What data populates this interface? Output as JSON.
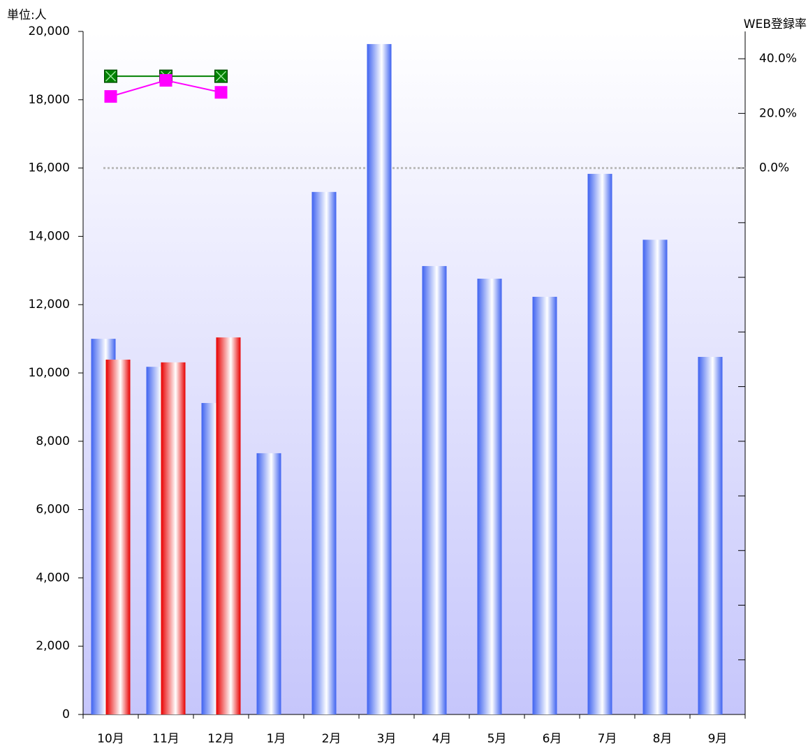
{
  "chart_data": {
    "type": "bar",
    "y_axis_label": "単位:人",
    "y2_axis_label": "WEB登録率",
    "categories": [
      "10月",
      "11月",
      "12月",
      "1月",
      "2月",
      "3月",
      "4月",
      "5月",
      "6月",
      "7月",
      "8月",
      "9月"
    ],
    "series": [
      {
        "color": "#3f63f0",
        "values": [
          11000,
          10180,
          9120,
          7650,
          15300,
          19630,
          13130,
          12760,
          12230,
          15830,
          13900,
          10470
        ]
      },
      {
        "color": "#e80000",
        "values": [
          10390,
          10310,
          11040,
          null,
          null,
          null,
          null,
          null,
          null,
          null,
          null,
          null
        ]
      },
      {
        "type": "line",
        "axis": "y2",
        "color": "#008000",
        "marker": "cross-square",
        "values": [
          33.6,
          33.6,
          33.6,
          null,
          null,
          null,
          null,
          null,
          null,
          null,
          null,
          null
        ]
      },
      {
        "type": "line",
        "axis": "y2",
        "color": "#ff00ff",
        "marker": "square",
        "values": [
          26.2,
          32.1,
          27.7,
          null,
          null,
          null,
          null,
          null,
          null,
          null,
          null,
          null
        ]
      }
    ],
    "ylim": [
      0,
      20000
    ],
    "yticks": [
      0,
      {
        "value": 2000,
        "label": "2,000"
      },
      {
        "value": 4000,
        "label": "4,000"
      },
      {
        "value": 6000,
        "label": "6,000"
      },
      {
        "value": 8000,
        "label": "8,000"
      },
      {
        "value": 10000,
        "label": "10,000"
      },
      {
        "value": 12000,
        "label": "12,000"
      },
      {
        "value": 14000,
        "label": "14,000"
      },
      {
        "value": 16000,
        "label": "16,000"
      },
      {
        "value": 18000,
        "label": "18,000"
      },
      {
        "value": 20000,
        "label": "20,000"
      }
    ],
    "y2lim": [
      -200,
      50
    ],
    "y2ticks": [
      {
        "value": 0,
        "label": "0.0%"
      },
      {
        "value": 20,
        "label": "20.0%"
      },
      {
        "value": 40,
        "label": "40.0%"
      }
    ],
    "y2minorticks": [
      -200,
      -180,
      -160,
      -140,
      -120,
      -100,
      -80,
      -60,
      -40,
      -20
    ],
    "reference_line": {
      "axis": "y2",
      "value": 0,
      "color": "#bbbbbb"
    },
    "grid": false
  }
}
